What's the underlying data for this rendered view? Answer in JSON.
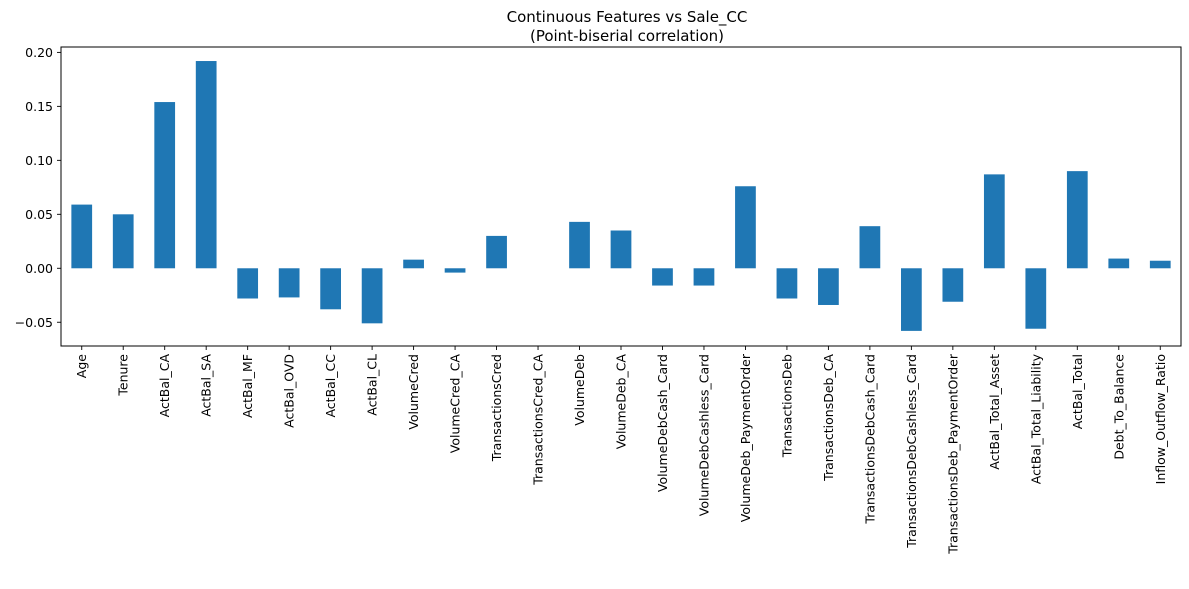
{
  "chart_data": {
    "type": "bar",
    "title": [
      "Continuous Features vs Sale_CC",
      "(Point-biserial correlation)"
    ],
    "xlabel": "",
    "ylabel": "",
    "ylim": [
      -0.072,
      0.205
    ],
    "yticks": [
      -0.05,
      0.0,
      0.05,
      0.1,
      0.15,
      0.2
    ],
    "ytick_labels": [
      "−0.05",
      "0.00",
      "0.05",
      "0.10",
      "0.15",
      "0.20"
    ],
    "grid": false,
    "legend": "none",
    "bar_color": "#1f77b4",
    "categories": [
      "Age",
      "Tenure",
      "ActBal_CA",
      "ActBal_SA",
      "ActBal_MF",
      "ActBal_OVD",
      "ActBal_CC",
      "ActBal_CL",
      "VolumeCred",
      "VolumeCred_CA",
      "TransactionsCred",
      "TransactionsCred_CA",
      "VolumeDeb",
      "VolumeDeb_CA",
      "VolumeDebCash_Card",
      "VolumeDebCashless_Card",
      "VolumeDeb_PaymentOrder",
      "TransactionsDeb",
      "TransactionsDeb_CA",
      "TransactionsDebCash_Card",
      "TransactionsDebCashless_Card",
      "TransactionsDeb_PaymentOrder",
      "ActBal_Total_Asset",
      "ActBal_Total_Liability",
      "ActBal_Total",
      "Debt_To_Balance",
      "Inflow_Outflow_Ratio"
    ],
    "values": [
      0.059,
      0.05,
      0.154,
      0.192,
      -0.028,
      -0.027,
      -0.038,
      -0.051,
      0.008,
      -0.004,
      0.03,
      0.0,
      0.043,
      0.035,
      -0.016,
      -0.016,
      0.076,
      -0.028,
      -0.034,
      0.039,
      -0.058,
      -0.031,
      0.087,
      -0.056,
      0.09,
      0.009,
      0.007
    ]
  }
}
